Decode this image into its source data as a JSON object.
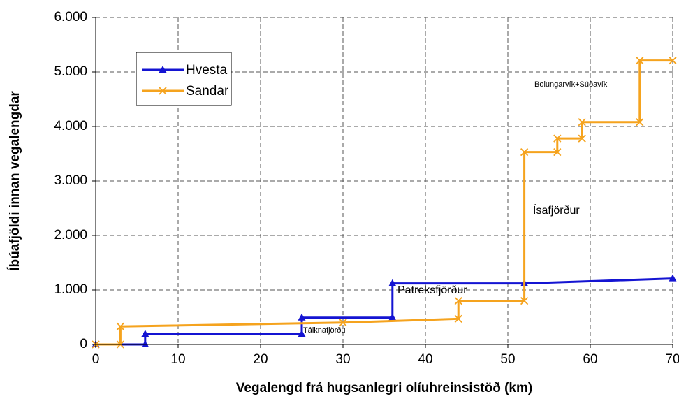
{
  "chart_data": {
    "type": "line",
    "x_label": "Vegalengd frá hugsanlegri olíuhreinsistöð (km)",
    "y_label": "Íbúafjöldi innan vegalengdar",
    "xlim": [
      0,
      70
    ],
    "xticks": [
      0,
      10,
      20,
      30,
      40,
      50,
      60,
      70
    ],
    "ylim": [
      0,
      6000
    ],
    "yticks": [
      0,
      {
        "value": 1000,
        "label": "1.000"
      },
      {
        "value": 2000,
        "label": "2.000"
      },
      {
        "value": 3000,
        "label": "3.000"
      },
      {
        "value": 4000,
        "label": "4.000"
      },
      {
        "value": 5000,
        "label": "5.000"
      },
      {
        "value": 6000,
        "label": "6.000"
      }
    ],
    "grid": true,
    "legend": "upper left",
    "series": [
      {
        "name": "Hvesta",
        "color": "#1414d2",
        "marker": "triangle",
        "x": [
          0,
          6,
          6,
          25,
          25,
          36,
          36,
          52,
          70
        ],
        "values": [
          0,
          0,
          190,
          190,
          490,
          490,
          1120,
          1120,
          1210
        ]
      },
      {
        "name": "Sandar",
        "color": "#f5a31e",
        "marker": "x",
        "x": [
          0,
          3,
          3,
          30,
          44,
          44,
          52,
          52,
          56,
          56,
          59,
          59,
          66,
          66,
          70
        ],
        "values": [
          0,
          0,
          330,
          400,
          470,
          800,
          800,
          3530,
          3530,
          3780,
          3780,
          4080,
          4080,
          5210,
          5210
        ]
      }
    ],
    "annotations": [
      "Tálknafjörðu",
      "Patreksfjörður",
      "Ísafjörður",
      "Bolungarvík+Súðavík"
    ]
  }
}
